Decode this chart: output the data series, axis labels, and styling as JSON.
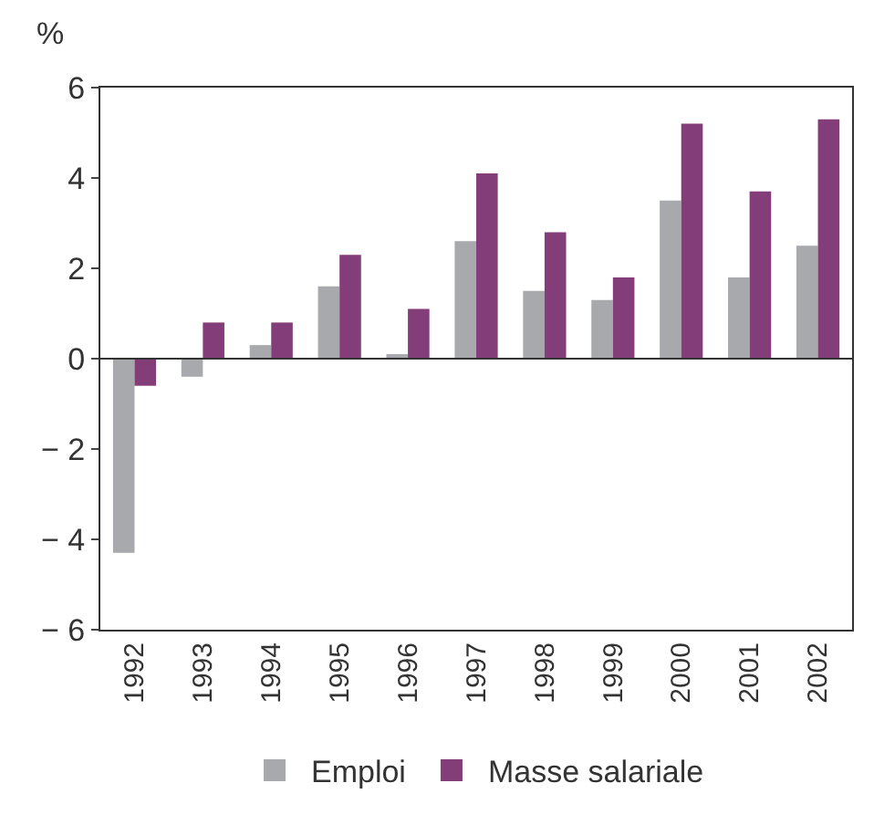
{
  "chart_data": {
    "type": "bar",
    "ylabel": "%",
    "categories": [
      "1992",
      "1993",
      "1994",
      "1995",
      "1996",
      "1997",
      "1998",
      "1999",
      "2000",
      "2001",
      "2002"
    ],
    "series": [
      {
        "name": "Emploi",
        "color": "#a7a9ac",
        "values": [
          -4.3,
          -0.4,
          0.3,
          1.6,
          0.1,
          2.6,
          1.5,
          1.3,
          3.5,
          1.8,
          2.5
        ]
      },
      {
        "name": "Masse salariale",
        "color": "#833d79",
        "values": [
          -0.6,
          0.8,
          0.8,
          2.3,
          1.1,
          4.1,
          2.8,
          1.8,
          5.2,
          3.7,
          5.3
        ]
      }
    ],
    "ylim": [
      -6,
      6
    ],
    "yticks": [
      {
        "value": -6,
        "label": "− 6"
      },
      {
        "value": -4,
        "label": "− 4"
      },
      {
        "value": -2,
        "label": "− 2"
      },
      0,
      2,
      4,
      6
    ],
    "ref_lines": [
      {
        "axis": "y",
        "value": 0,
        "color": "#333333"
      }
    ],
    "legend": "bottom"
  }
}
